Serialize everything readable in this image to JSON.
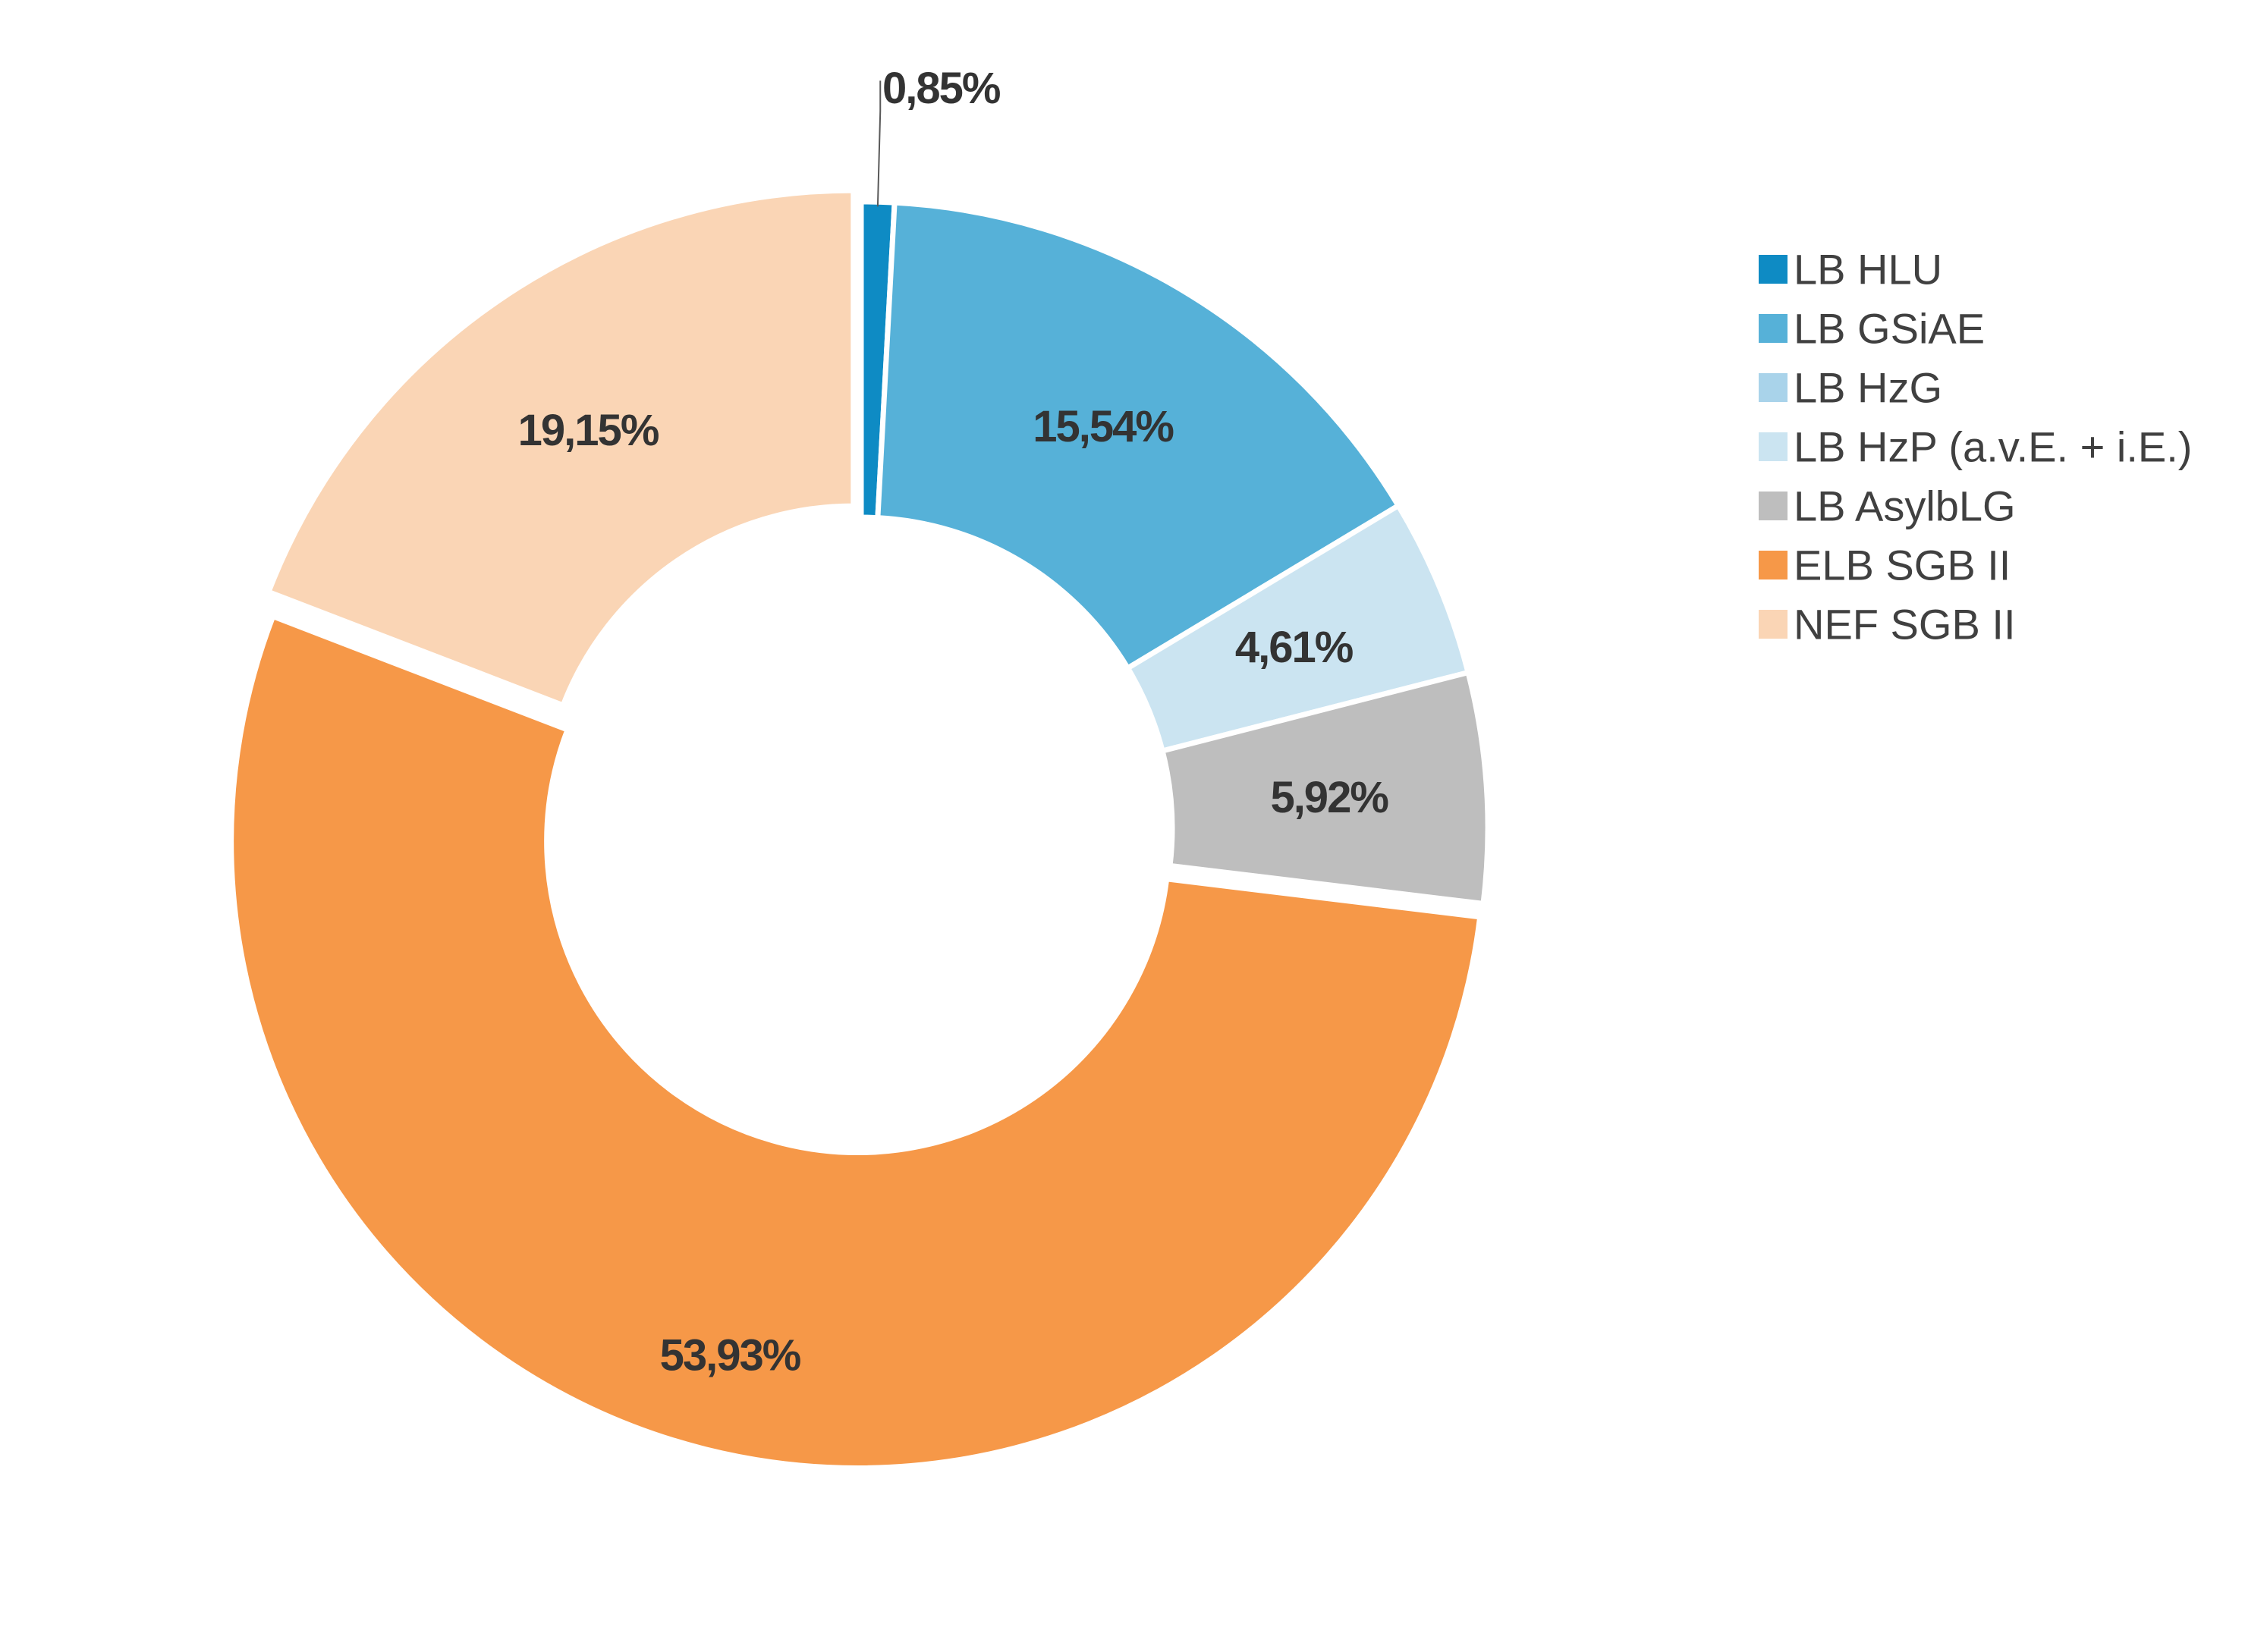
{
  "chart_data": {
    "type": "pie",
    "variant": "donut",
    "start": "top",
    "direction": "clockwise",
    "legend_position": "right",
    "categories": [
      "LB HLU",
      "LB GSiAE",
      "LB HzG",
      "LB HzP (a.v.E. + i.E.)",
      "LB AsylbLG",
      "ELB SGB II",
      "NEF SGB II"
    ],
    "values": [
      0.85,
      15.54,
      0.0,
      4.61,
      5.92,
      53.93,
      19.15
    ],
    "data_labels": [
      "0,85%",
      "15,54%",
      "",
      "4,61%",
      "5,92%",
      "53,93%",
      "19,15%"
    ],
    "colors": [
      "#0E8BC4",
      "#56B1D8",
      "#A9D3EA",
      "#CBE4F1",
      "#BEBEBE",
      "#F69848",
      "#FAD5B5"
    ]
  }
}
